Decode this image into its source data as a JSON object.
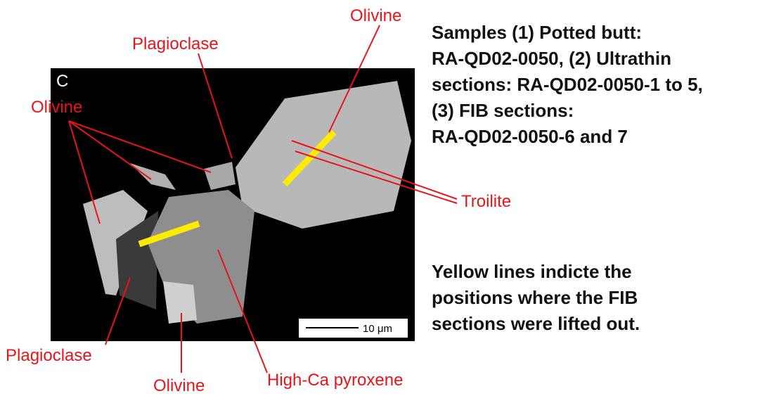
{
  "figure": {
    "panel_label": "C",
    "scale_bar": "10 μm",
    "labels": {
      "olivine_top": "Olivine",
      "plagioclase_top": "Plagioclase",
      "olivine_left": "Olivine",
      "troilite": "Troilite",
      "plagioclase_bottom": "Plagioclase",
      "olivine_bottom": "Olivine",
      "high_ca_pyroxene": "High-Ca pyroxene"
    },
    "notes": [
      [
        "Samples (1) Potted butt:",
        "RA-QD02-0050, (2) Ultrathin",
        "sections: RA-QD02-0050-1 to 5,",
        "(3) FIB sections:",
        "RA-QD02-0050-6 and 7"
      ],
      [
        "Yellow lines indicte the",
        "positions where the FIB",
        "sections were lifted out."
      ]
    ]
  }
}
